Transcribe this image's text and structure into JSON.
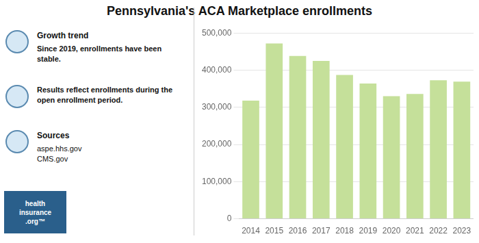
{
  "chart_data": {
    "type": "bar",
    "title": "Pennsylvania's ACA Marketplace enrollments",
    "categories": [
      "2014",
      "2015",
      "2016",
      "2017",
      "2018",
      "2019",
      "2020",
      "2021",
      "2022",
      "2023"
    ],
    "values": [
      318000,
      472000,
      438000,
      425000,
      387000,
      364000,
      330000,
      336000,
      373000,
      369000
    ],
    "color": "#c5e09a",
    "ylim": [
      0,
      500000
    ],
    "yticks": [
      0,
      {
        "value": 100000,
        "label": "100,000"
      },
      {
        "value": 200000,
        "label": "200,000"
      },
      {
        "value": 300000,
        "label": "300,000"
      },
      {
        "value": 400000,
        "label": "400,000"
      },
      {
        "value": 500000,
        "label": "500,000"
      }
    ],
    "grid": true,
    "annotations": [
      [
        "Growth trend",
        "Since 2019, enrollments have been\nstable."
      ],
      [
        "Results reflect enrollments during the\nopen enrollment period."
      ],
      [
        "Sources",
        "aspe.hhs.gov\nCMS.gov"
      ],
      [
        "health\ninsurance\n.org™"
      ]
    ]
  }
}
